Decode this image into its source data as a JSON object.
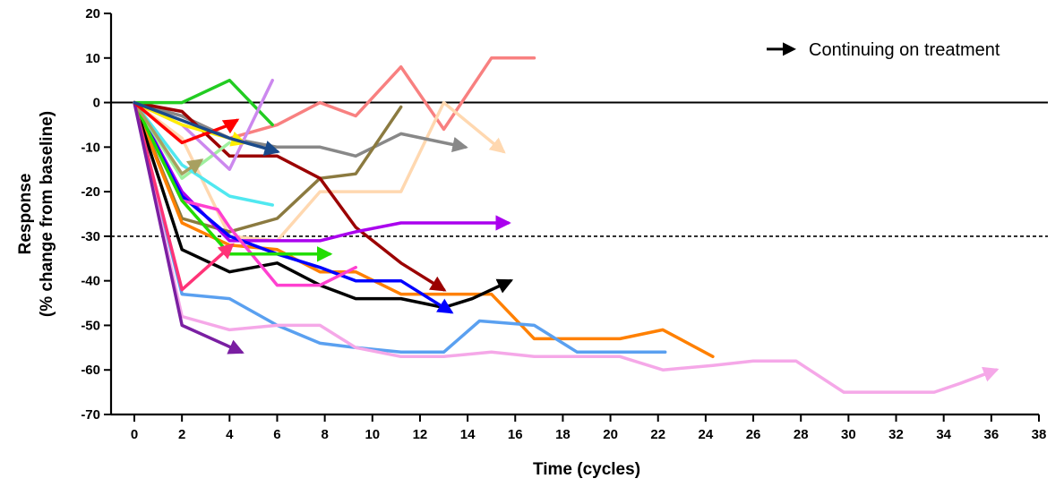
{
  "chart_data": {
    "type": "line",
    "xlabel": "Time (cycles)",
    "ylabel_lines": [
      "Response",
      "(% change from baseline)"
    ],
    "xlim": [
      0,
      38
    ],
    "ylim": [
      -70,
      20
    ],
    "xticks": [
      0,
      2,
      4,
      6,
      8,
      10,
      12,
      14,
      16,
      18,
      20,
      22,
      24,
      26,
      28,
      30,
      32,
      34,
      36,
      38
    ],
    "yticks": [
      -70,
      -60,
      -50,
      -40,
      -30,
      -20,
      -10,
      0,
      10,
      20
    ],
    "reference_lines": [
      {
        "y": 0,
        "style": "solid"
      },
      {
        "y": -30,
        "style": "dashed"
      }
    ],
    "legend": {
      "label": "Continuing on treatment",
      "marker": "arrow",
      "position": "top-right"
    },
    "series": [
      {
        "color": "#f88080",
        "arrow": false,
        "points": [
          [
            0,
            0
          ],
          [
            2,
            -3
          ],
          [
            4,
            -8
          ],
          [
            6,
            -5
          ],
          [
            7.8,
            0
          ],
          [
            9.3,
            -3
          ],
          [
            11.2,
            8
          ],
          [
            13,
            -6
          ],
          [
            15,
            10
          ],
          [
            16.8,
            10
          ]
        ]
      },
      {
        "color": "#ffd8b0",
        "arrow": true,
        "points": [
          [
            0,
            0
          ],
          [
            2,
            -8
          ],
          [
            4,
            -30
          ],
          [
            6,
            -31
          ],
          [
            7.8,
            -20
          ],
          [
            9.3,
            -20
          ],
          [
            11.2,
            -20
          ],
          [
            13,
            0
          ],
          [
            15.5,
            -11
          ]
        ]
      },
      {
        "color": "#888888",
        "arrow": true,
        "points": [
          [
            0,
            0
          ],
          [
            2,
            -3
          ],
          [
            4,
            -8
          ],
          [
            6,
            -10
          ],
          [
            7.8,
            -10
          ],
          [
            9.3,
            -12
          ],
          [
            11.2,
            -7
          ],
          [
            13,
            -9
          ],
          [
            13.9,
            -10
          ]
        ]
      },
      {
        "color": "#8b7a40",
        "arrow": false,
        "points": [
          [
            0,
            0
          ],
          [
            2,
            -26
          ],
          [
            4,
            -29
          ],
          [
            6,
            -26
          ],
          [
            7.8,
            -17
          ],
          [
            9.3,
            -16
          ],
          [
            11.2,
            -1
          ]
        ]
      },
      {
        "color": "#9b0000",
        "arrow": true,
        "points": [
          [
            0,
            0
          ],
          [
            2,
            -2
          ],
          [
            4,
            -12
          ],
          [
            6,
            -12
          ],
          [
            7.8,
            -17
          ],
          [
            9.3,
            -28
          ],
          [
            11.2,
            -36
          ],
          [
            13,
            -42
          ]
        ]
      },
      {
        "color": "#aa00ee",
        "arrow": true,
        "points": [
          [
            0,
            0
          ],
          [
            2,
            -20
          ],
          [
            4,
            -31
          ],
          [
            6,
            -31
          ],
          [
            7.8,
            -31
          ],
          [
            9.3,
            -29
          ],
          [
            11.2,
            -27
          ],
          [
            13,
            -27
          ],
          [
            15.7,
            -27
          ]
        ]
      },
      {
        "color": "#ff8000",
        "arrow": false,
        "points": [
          [
            0,
            0
          ],
          [
            2,
            -27
          ],
          [
            4,
            -32
          ],
          [
            6,
            -33
          ],
          [
            7.8,
            -38
          ],
          [
            9.3,
            -38
          ],
          [
            11.2,
            -43
          ],
          [
            13,
            -43
          ],
          [
            15,
            -43
          ],
          [
            16.8,
            -53
          ],
          [
            18.6,
            -53
          ],
          [
            20.4,
            -53
          ],
          [
            22.2,
            -51
          ],
          [
            24.3,
            -57
          ]
        ]
      },
      {
        "color": "#000000",
        "arrow": true,
        "points": [
          [
            0,
            0
          ],
          [
            2,
            -33
          ],
          [
            4,
            -38
          ],
          [
            6,
            -36
          ],
          [
            7.8,
            -41
          ],
          [
            9.3,
            -44
          ],
          [
            11.2,
            -44
          ],
          [
            13,
            -46
          ],
          [
            14.2,
            -44
          ],
          [
            15.8,
            -40
          ]
        ]
      },
      {
        "color": "#0000ff",
        "arrow": true,
        "points": [
          [
            0,
            0
          ],
          [
            2,
            -21
          ],
          [
            4,
            -30
          ],
          [
            6,
            -34
          ],
          [
            7.8,
            -37
          ],
          [
            9.3,
            -40
          ],
          [
            11.2,
            -40
          ],
          [
            13.3,
            -47
          ]
        ]
      },
      {
        "color": "#5aa0f0",
        "arrow": false,
        "points": [
          [
            0,
            0
          ],
          [
            2,
            -43
          ],
          [
            4,
            -44
          ],
          [
            6,
            -50
          ],
          [
            7.8,
            -54
          ],
          [
            9.3,
            -55
          ],
          [
            11.2,
            -56
          ],
          [
            13,
            -56
          ],
          [
            14.5,
            -49
          ],
          [
            16.8,
            -50
          ],
          [
            18.6,
            -56
          ],
          [
            20.4,
            -56
          ],
          [
            22.3,
            -56
          ]
        ]
      },
      {
        "color": "#f5a8e8",
        "arrow": true,
        "points": [
          [
            0,
            0
          ],
          [
            2,
            -48
          ],
          [
            4,
            -51
          ],
          [
            6,
            -50
          ],
          [
            7.8,
            -50
          ],
          [
            9.3,
            -55
          ],
          [
            11.2,
            -57
          ],
          [
            13,
            -57
          ],
          [
            15,
            -56
          ],
          [
            16.8,
            -57
          ],
          [
            18.6,
            -57
          ],
          [
            20.4,
            -57
          ],
          [
            22.2,
            -60
          ],
          [
            24.3,
            -59
          ],
          [
            26,
            -58
          ],
          [
            27.8,
            -58
          ],
          [
            29.8,
            -65
          ],
          [
            31.7,
            -65
          ],
          [
            33.6,
            -65
          ],
          [
            34.7,
            -63
          ],
          [
            36.2,
            -60
          ]
        ]
      },
      {
        "color": "#ff40d0",
        "arrow": false,
        "points": [
          [
            0,
            0
          ],
          [
            2,
            -22
          ],
          [
            3.5,
            -24
          ],
          [
            4,
            -28
          ],
          [
            6,
            -41
          ],
          [
            7.8,
            -41
          ],
          [
            9.3,
            -37
          ]
        ]
      },
      {
        "color": "#9ff09f",
        "arrow": false,
        "points": [
          [
            0,
            0
          ],
          [
            2,
            -17
          ],
          [
            4,
            -9
          ]
        ]
      },
      {
        "color": "#50e8f0",
        "arrow": false,
        "points": [
          [
            0,
            0
          ],
          [
            2,
            -14
          ],
          [
            4,
            -21
          ],
          [
            5.8,
            -23
          ]
        ]
      },
      {
        "color": "#22cc22",
        "arrow": false,
        "points": [
          [
            0,
            0
          ],
          [
            2,
            0
          ],
          [
            4,
            5
          ],
          [
            5.8,
            -5
          ]
        ]
      },
      {
        "color": "#22dd00",
        "arrow": true,
        "points": [
          [
            0,
            0
          ],
          [
            2,
            -22
          ],
          [
            4,
            -34
          ],
          [
            6,
            -34
          ],
          [
            7.8,
            -34
          ],
          [
            8.2,
            -34
          ]
        ]
      },
      {
        "color": "#cc88ee",
        "arrow": false,
        "points": [
          [
            0,
            0
          ],
          [
            2,
            -5
          ],
          [
            4,
            -15
          ],
          [
            5.8,
            5
          ]
        ]
      },
      {
        "color": "#a8a060",
        "arrow": true,
        "points": [
          [
            0,
            0
          ],
          [
            2,
            -16
          ],
          [
            2.8,
            -13
          ]
        ]
      },
      {
        "color": "#ff3377",
        "arrow": true,
        "points": [
          [
            0,
            0
          ],
          [
            2,
            -42
          ],
          [
            4.1,
            -32
          ]
        ]
      },
      {
        "color": "#7a1fa2",
        "arrow": true,
        "points": [
          [
            0,
            0
          ],
          [
            2,
            -50
          ],
          [
            4.5,
            -56
          ]
        ]
      },
      {
        "color": "#ffee00",
        "arrow": true,
        "points": [
          [
            0,
            0
          ],
          [
            2,
            -5
          ],
          [
            4,
            -8
          ],
          [
            4.6,
            -9
          ]
        ]
      },
      {
        "color": "#ff0000",
        "arrow": true,
        "points": [
          [
            0,
            0
          ],
          [
            2,
            -9
          ],
          [
            4,
            -5
          ],
          [
            4.3,
            -4
          ]
        ]
      },
      {
        "color": "#1a4a8a",
        "arrow": true,
        "points": [
          [
            0,
            0
          ],
          [
            2,
            -4
          ],
          [
            4,
            -8
          ],
          [
            6,
            -11
          ]
        ]
      }
    ]
  }
}
